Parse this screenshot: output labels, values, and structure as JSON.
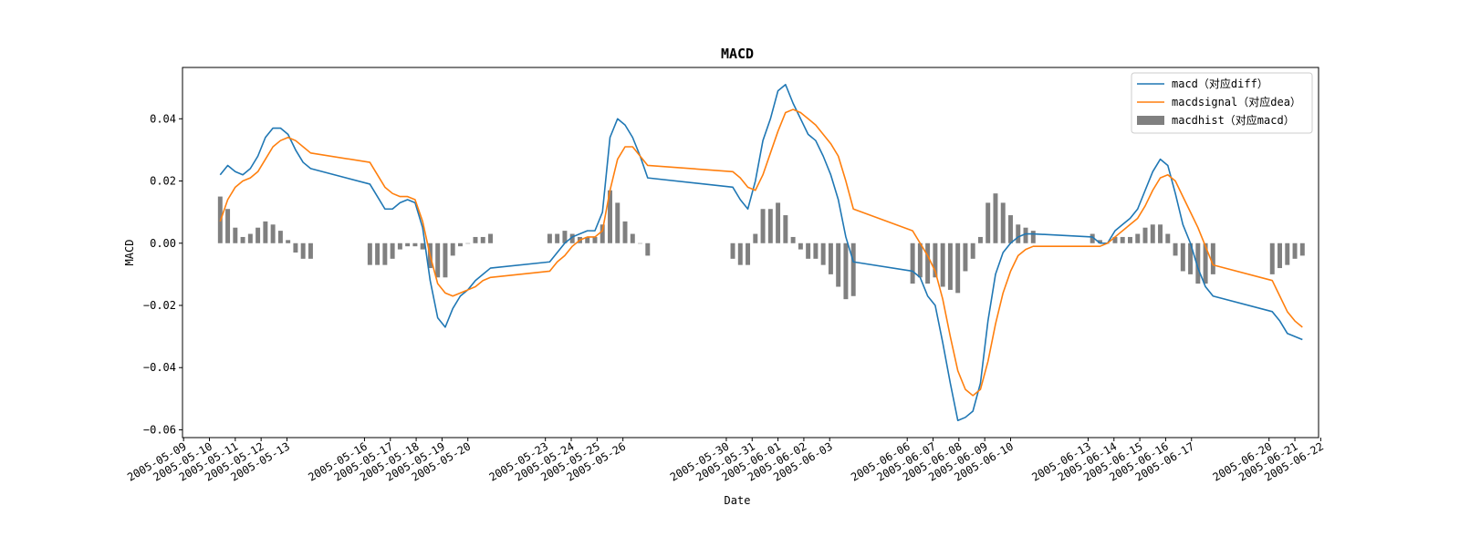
{
  "chart_data": {
    "type": "line",
    "title": "MACD",
    "xlabel": "Date",
    "ylabel": "MACD",
    "ylim": [
      -0.0625,
      0.0565
    ],
    "yticks": [
      -0.06,
      -0.04,
      -0.02,
      0.0,
      0.02,
      0.04
    ],
    "ytick_labels": [
      "−0.06",
      "−0.04",
      "−0.02",
      "0.00",
      "0.02",
      "0.04"
    ],
    "xlim": [
      "2005-05-08T23:00",
      "2005-06-21T22:00"
    ],
    "xticks": [
      "2005-05-09",
      "2005-05-10",
      "2005-05-11",
      "2005-05-12",
      "2005-05-13",
      "2005-05-16",
      "2005-05-17",
      "2005-05-18",
      "2005-05-19",
      "2005-05-20",
      "2005-05-23",
      "2005-05-24",
      "2005-05-25",
      "2005-05-26",
      "2005-05-30",
      "2005-05-31",
      "2005-06-01",
      "2005-06-02",
      "2005-06-03",
      "2005-06-06",
      "2005-06-07",
      "2005-06-08",
      "2005-06-09",
      "2005-06-10",
      "2005-06-13",
      "2005-06-14",
      "2005-06-15",
      "2005-06-16",
      "2005-06-17",
      "2005-06-20",
      "2005-06-21",
      "2005-06-22"
    ],
    "grid": false,
    "legend_position": "top-right",
    "colors": {
      "macd": "#1f77b4",
      "signal": "#ff7f0e",
      "hist": "#808080"
    },
    "series": [
      {
        "name": "macd（对应diff）",
        "kind": "line",
        "x": [
          "2005-05-10T10:00",
          "2005-05-10T17:00",
          "2005-05-11T00:00",
          "2005-05-11T07:00",
          "2005-05-11T14:00",
          "2005-05-11T21:00",
          "2005-05-12T04:00",
          "2005-05-12T11:00",
          "2005-05-12T18:00",
          "2005-05-13T01:00",
          "2005-05-13T08:00",
          "2005-05-13T15:00",
          "2005-05-13T22:00",
          "2005-05-16T05:00",
          "2005-05-16T12:00",
          "2005-05-16T19:00",
          "2005-05-17T02:00",
          "2005-05-17T09:00",
          "2005-05-17T16:00",
          "2005-05-17T23:00",
          "2005-05-18T06:00",
          "2005-05-18T13:00",
          "2005-05-18T20:00",
          "2005-05-19T03:00",
          "2005-05-19T10:00",
          "2005-05-19T17:00",
          "2005-05-20T00:00",
          "2005-05-20T07:00",
          "2005-05-20T14:00",
          "2005-05-20T21:00",
          "2005-05-23T04:00",
          "2005-05-23T11:00",
          "2005-05-23T18:00",
          "2005-05-24T01:00",
          "2005-05-24T08:00",
          "2005-05-24T15:00",
          "2005-05-24T22:00",
          "2005-05-25T05:00",
          "2005-05-25T12:00",
          "2005-05-25T19:00",
          "2005-05-26T02:00",
          "2005-05-26T09:00",
          "2005-05-26T16:00",
          "2005-05-26T23:00",
          "2005-05-30T06:00",
          "2005-05-30T13:00",
          "2005-05-30T20:00",
          "2005-05-31T03:00",
          "2005-05-31T10:00",
          "2005-05-31T17:00",
          "2005-06-01T00:00",
          "2005-06-01T07:00",
          "2005-06-01T14:00",
          "2005-06-01T21:00",
          "2005-06-02T04:00",
          "2005-06-02T11:00",
          "2005-06-02T18:00",
          "2005-06-03T01:00",
          "2005-06-03T08:00",
          "2005-06-03T15:00",
          "2005-06-03T22:00",
          "2005-06-06T05:00",
          "2005-06-06T12:00",
          "2005-06-06T19:00",
          "2005-06-07T02:00",
          "2005-06-07T09:00",
          "2005-06-07T16:00",
          "2005-06-07T23:00",
          "2005-06-08T06:00",
          "2005-06-08T13:00",
          "2005-06-08T20:00",
          "2005-06-09T03:00",
          "2005-06-09T10:00",
          "2005-06-09T17:00",
          "2005-06-10T00:00",
          "2005-06-10T07:00",
          "2005-06-10T14:00",
          "2005-06-10T21:00",
          "2005-06-13T04:00",
          "2005-06-13T11:00",
          "2005-06-13T18:00",
          "2005-06-14T01:00",
          "2005-06-14T08:00",
          "2005-06-14T15:00",
          "2005-06-14T22:00",
          "2005-06-15T05:00",
          "2005-06-15T12:00",
          "2005-06-15T19:00",
          "2005-06-16T02:00",
          "2005-06-16T09:00",
          "2005-06-16T16:00",
          "2005-06-16T23:00",
          "2005-06-17T06:00",
          "2005-06-17T13:00",
          "2005-06-17T20:00",
          "2005-06-20T03:00",
          "2005-06-20T10:00",
          "2005-06-20T17:00",
          "2005-06-21T00:00",
          "2005-06-21T07:00"
        ],
        "values": [
          0.022,
          0.025,
          0.023,
          0.022,
          0.024,
          0.028,
          0.034,
          0.037,
          0.037,
          0.035,
          0.03,
          0.026,
          0.024,
          0.019,
          0.015,
          0.011,
          0.011,
          0.013,
          0.014,
          0.013,
          0.005,
          -0.012,
          -0.024,
          -0.027,
          -0.021,
          -0.017,
          -0.015,
          -0.012,
          -0.01,
          -0.008,
          -0.006,
          -0.003,
          0.0,
          0.002,
          0.003,
          0.004,
          0.004,
          0.01,
          0.034,
          0.04,
          0.038,
          0.034,
          0.028,
          0.021,
          0.018,
          0.014,
          0.011,
          0.02,
          0.033,
          0.04,
          0.049,
          0.051,
          0.045,
          0.04,
          0.035,
          0.033,
          0.028,
          0.022,
          0.014,
          0.002,
          -0.006,
          -0.009,
          -0.011,
          -0.017,
          -0.02,
          -0.032,
          -0.045,
          -0.057,
          -0.056,
          -0.054,
          -0.045,
          -0.025,
          -0.01,
          -0.003,
          0.0,
          0.002,
          0.003,
          0.003,
          0.002,
          0.0,
          0.0,
          0.004,
          0.006,
          0.008,
          0.011,
          0.017,
          0.023,
          0.027,
          0.025,
          0.016,
          0.006,
          0.0,
          -0.008,
          -0.014,
          -0.017,
          -0.022,
          -0.025,
          -0.029,
          -0.03,
          -0.031
        ]
      },
      {
        "name": "macdsignal（对应dea）",
        "kind": "line",
        "x": [
          "2005-05-10T10:00",
          "2005-05-10T17:00",
          "2005-05-11T00:00",
          "2005-05-11T07:00",
          "2005-05-11T14:00",
          "2005-05-11T21:00",
          "2005-05-12T04:00",
          "2005-05-12T11:00",
          "2005-05-12T18:00",
          "2005-05-13T01:00",
          "2005-05-13T08:00",
          "2005-05-13T15:00",
          "2005-05-13T22:00",
          "2005-05-16T05:00",
          "2005-05-16T12:00",
          "2005-05-16T19:00",
          "2005-05-17T02:00",
          "2005-05-17T09:00",
          "2005-05-17T16:00",
          "2005-05-17T23:00",
          "2005-05-18T06:00",
          "2005-05-18T13:00",
          "2005-05-18T20:00",
          "2005-05-19T03:00",
          "2005-05-19T10:00",
          "2005-05-19T17:00",
          "2005-05-20T00:00",
          "2005-05-20T07:00",
          "2005-05-20T14:00",
          "2005-05-20T21:00",
          "2005-05-23T04:00",
          "2005-05-23T11:00",
          "2005-05-23T18:00",
          "2005-05-24T01:00",
          "2005-05-24T08:00",
          "2005-05-24T15:00",
          "2005-05-24T22:00",
          "2005-05-25T05:00",
          "2005-05-25T12:00",
          "2005-05-25T19:00",
          "2005-05-26T02:00",
          "2005-05-26T09:00",
          "2005-05-26T16:00",
          "2005-05-26T23:00",
          "2005-05-30T06:00",
          "2005-05-30T13:00",
          "2005-05-30T20:00",
          "2005-05-31T03:00",
          "2005-05-31T10:00",
          "2005-05-31T17:00",
          "2005-06-01T00:00",
          "2005-06-01T07:00",
          "2005-06-01T14:00",
          "2005-06-01T21:00",
          "2005-06-02T04:00",
          "2005-06-02T11:00",
          "2005-06-02T18:00",
          "2005-06-03T01:00",
          "2005-06-03T08:00",
          "2005-06-03T15:00",
          "2005-06-03T22:00",
          "2005-06-06T05:00",
          "2005-06-06T12:00",
          "2005-06-06T19:00",
          "2005-06-07T02:00",
          "2005-06-07T09:00",
          "2005-06-07T16:00",
          "2005-06-07T23:00",
          "2005-06-08T06:00",
          "2005-06-08T13:00",
          "2005-06-08T20:00",
          "2005-06-09T03:00",
          "2005-06-09T10:00",
          "2005-06-09T17:00",
          "2005-06-10T00:00",
          "2005-06-10T07:00",
          "2005-06-10T14:00",
          "2005-06-10T21:00",
          "2005-06-13T04:00",
          "2005-06-13T11:00",
          "2005-06-13T18:00",
          "2005-06-14T01:00",
          "2005-06-14T08:00",
          "2005-06-14T15:00",
          "2005-06-14T22:00",
          "2005-06-15T05:00",
          "2005-06-15T12:00",
          "2005-06-15T19:00",
          "2005-06-16T02:00",
          "2005-06-16T09:00",
          "2005-06-16T16:00",
          "2005-06-16T23:00",
          "2005-06-17T06:00",
          "2005-06-17T13:00",
          "2005-06-17T20:00",
          "2005-06-20T03:00",
          "2005-06-20T10:00",
          "2005-06-20T17:00",
          "2005-06-21T00:00",
          "2005-06-21T07:00"
        ],
        "values": [
          0.007,
          0.014,
          0.018,
          0.02,
          0.021,
          0.023,
          0.027,
          0.031,
          0.033,
          0.034,
          0.033,
          0.031,
          0.029,
          0.026,
          0.022,
          0.018,
          0.016,
          0.015,
          0.015,
          0.014,
          0.007,
          -0.004,
          -0.013,
          -0.016,
          -0.017,
          -0.016,
          -0.015,
          -0.014,
          -0.012,
          -0.011,
          -0.009,
          -0.006,
          -0.004,
          -0.001,
          0.001,
          0.002,
          0.002,
          0.004,
          0.017,
          0.027,
          0.031,
          0.031,
          0.028,
          0.025,
          0.023,
          0.021,
          0.018,
          0.017,
          0.022,
          0.029,
          0.036,
          0.042,
          0.043,
          0.042,
          0.04,
          0.038,
          0.035,
          0.032,
          0.028,
          0.02,
          0.011,
          0.004,
          0.0,
          -0.004,
          -0.009,
          -0.018,
          -0.03,
          -0.041,
          -0.047,
          -0.049,
          -0.047,
          -0.038,
          -0.026,
          -0.016,
          -0.009,
          -0.004,
          -0.002,
          -0.001,
          -0.001,
          -0.001,
          0.0,
          0.002,
          0.004,
          0.006,
          0.008,
          0.012,
          0.017,
          0.021,
          0.022,
          0.02,
          0.015,
          0.01,
          0.005,
          -0.001,
          -0.007,
          -0.012,
          -0.017,
          -0.022,
          -0.025,
          -0.027
        ]
      },
      {
        "name": "macdhist（对应macd）",
        "kind": "bar",
        "x": [
          "2005-05-10T10:00",
          "2005-05-10T17:00",
          "2005-05-11T00:00",
          "2005-05-11T07:00",
          "2005-05-11T14:00",
          "2005-05-11T21:00",
          "2005-05-12T04:00",
          "2005-05-12T11:00",
          "2005-05-12T18:00",
          "2005-05-13T01:00",
          "2005-05-13T08:00",
          "2005-05-13T15:00",
          "2005-05-13T22:00",
          "2005-05-16T05:00",
          "2005-05-16T12:00",
          "2005-05-16T19:00",
          "2005-05-17T02:00",
          "2005-05-17T09:00",
          "2005-05-17T16:00",
          "2005-05-17T23:00",
          "2005-05-18T06:00",
          "2005-05-18T13:00",
          "2005-05-18T20:00",
          "2005-05-19T03:00",
          "2005-05-19T10:00",
          "2005-05-19T17:00",
          "2005-05-20T00:00",
          "2005-05-20T07:00",
          "2005-05-20T14:00",
          "2005-05-20T21:00",
          "2005-05-23T04:00",
          "2005-05-23T11:00",
          "2005-05-23T18:00",
          "2005-05-24T01:00",
          "2005-05-24T08:00",
          "2005-05-24T15:00",
          "2005-05-24T22:00",
          "2005-05-25T05:00",
          "2005-05-25T12:00",
          "2005-05-25T19:00",
          "2005-05-26T02:00",
          "2005-05-26T09:00",
          "2005-05-26T16:00",
          "2005-05-26T23:00",
          "2005-05-30T06:00",
          "2005-05-30T13:00",
          "2005-05-30T20:00",
          "2005-05-31T03:00",
          "2005-05-31T10:00",
          "2005-05-31T17:00",
          "2005-06-01T00:00",
          "2005-06-01T07:00",
          "2005-06-01T14:00",
          "2005-06-01T21:00",
          "2005-06-02T04:00",
          "2005-06-02T11:00",
          "2005-06-02T18:00",
          "2005-06-03T01:00",
          "2005-06-03T08:00",
          "2005-06-03T15:00",
          "2005-06-03T22:00",
          "2005-06-06T05:00",
          "2005-06-06T12:00",
          "2005-06-06T19:00",
          "2005-06-07T02:00",
          "2005-06-07T09:00",
          "2005-06-07T16:00",
          "2005-06-07T23:00",
          "2005-06-08T06:00",
          "2005-06-08T13:00",
          "2005-06-08T20:00",
          "2005-06-09T03:00",
          "2005-06-09T10:00",
          "2005-06-09T17:00",
          "2005-06-10T00:00",
          "2005-06-10T07:00",
          "2005-06-10T14:00",
          "2005-06-10T21:00",
          "2005-06-13T04:00",
          "2005-06-13T11:00",
          "2005-06-13T18:00",
          "2005-06-14T01:00",
          "2005-06-14T08:00",
          "2005-06-14T15:00",
          "2005-06-14T22:00",
          "2005-06-15T05:00",
          "2005-06-15T12:00",
          "2005-06-15T19:00",
          "2005-06-16T02:00",
          "2005-06-16T09:00",
          "2005-06-16T16:00",
          "2005-06-16T23:00",
          "2005-06-17T06:00",
          "2005-06-17T13:00",
          "2005-06-17T20:00",
          "2005-06-20T03:00",
          "2005-06-20T10:00",
          "2005-06-20T17:00",
          "2005-06-21T00:00",
          "2005-06-21T07:00"
        ],
        "values": [
          0.015,
          0.011,
          0.005,
          0.002,
          0.003,
          0.005,
          0.007,
          0.006,
          0.004,
          0.001,
          -0.003,
          -0.005,
          -0.005,
          -0.007,
          -0.007,
          -0.007,
          -0.005,
          -0.002,
          -0.001,
          -0.001,
          -0.002,
          -0.008,
          -0.011,
          -0.011,
          -0.004,
          -0.001,
          0.0,
          0.002,
          0.002,
          0.003,
          0.003,
          0.003,
          0.004,
          0.003,
          0.002,
          0.002,
          0.002,
          0.006,
          0.017,
          0.013,
          0.007,
          0.003,
          0.0,
          -0.004,
          -0.005,
          -0.007,
          -0.007,
          0.003,
          0.011,
          0.011,
          0.013,
          0.009,
          0.002,
          -0.002,
          -0.005,
          -0.005,
          -0.007,
          -0.01,
          -0.014,
          -0.018,
          -0.017,
          -0.013,
          -0.011,
          -0.013,
          -0.011,
          -0.014,
          -0.015,
          -0.016,
          -0.009,
          -0.005,
          0.002,
          0.013,
          0.016,
          0.013,
          0.009,
          0.006,
          0.005,
          0.004,
          0.003,
          0.001,
          0.0,
          0.002,
          0.002,
          0.002,
          0.003,
          0.005,
          0.006,
          0.006,
          0.003,
          -0.004,
          -0.009,
          -0.01,
          -0.013,
          -0.013,
          -0.01,
          -0.01,
          -0.008,
          -0.007,
          -0.005,
          -0.004
        ]
      }
    ]
  }
}
